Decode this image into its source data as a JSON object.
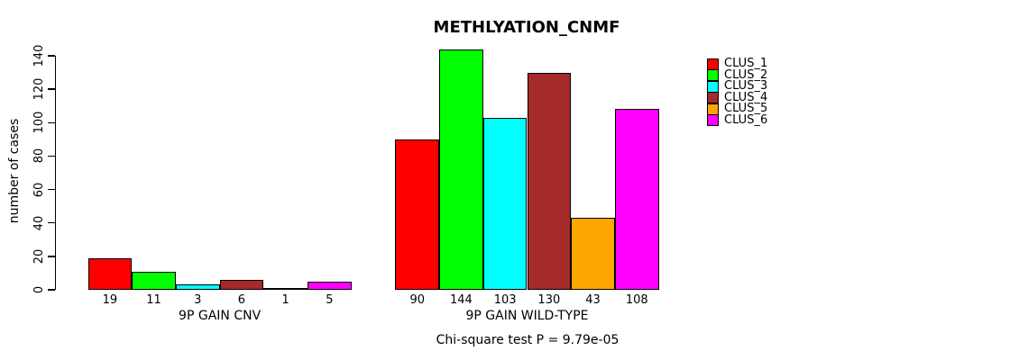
{
  "chart_data": {
    "type": "bar",
    "title": "METHLYATION_CNMF",
    "ylabel": "number of cases",
    "xlabel": "",
    "annotation": "Chi-square test P = 9.79e-05",
    "groups": [
      "9P GAIN CNV",
      "9P GAIN WILD-TYPE"
    ],
    "series": [
      {
        "name": "CLUS_1",
        "color": "#FF0000",
        "values": [
          19,
          90
        ]
      },
      {
        "name": "CLUS_2",
        "color": "#00FF00",
        "values": [
          11,
          144
        ]
      },
      {
        "name": "CLUS_3",
        "color": "#00FFFF",
        "values": [
          3,
          103
        ]
      },
      {
        "name": "CLUS_4",
        "color": "#A52A2A",
        "values": [
          6,
          130
        ]
      },
      {
        "name": "CLUS_5",
        "color": "#FFA500",
        "values": [
          1,
          43
        ]
      },
      {
        "name": "CLUS_6",
        "color": "#FF00FF",
        "values": [
          5,
          108
        ]
      }
    ],
    "bar_value_labels": [
      [
        "19",
        "11",
        "3",
        "6",
        "1",
        "5"
      ],
      [
        "90",
        "144",
        "103",
        "130",
        "43",
        "108"
      ]
    ],
    "yticks": [
      0,
      20,
      40,
      60,
      80,
      100,
      120,
      140
    ],
    "ylim": [
      0,
      140
    ],
    "grid": false,
    "legend_position": "right",
    "axis_color": "#000000",
    "background_color": "#FFFFFF"
  }
}
